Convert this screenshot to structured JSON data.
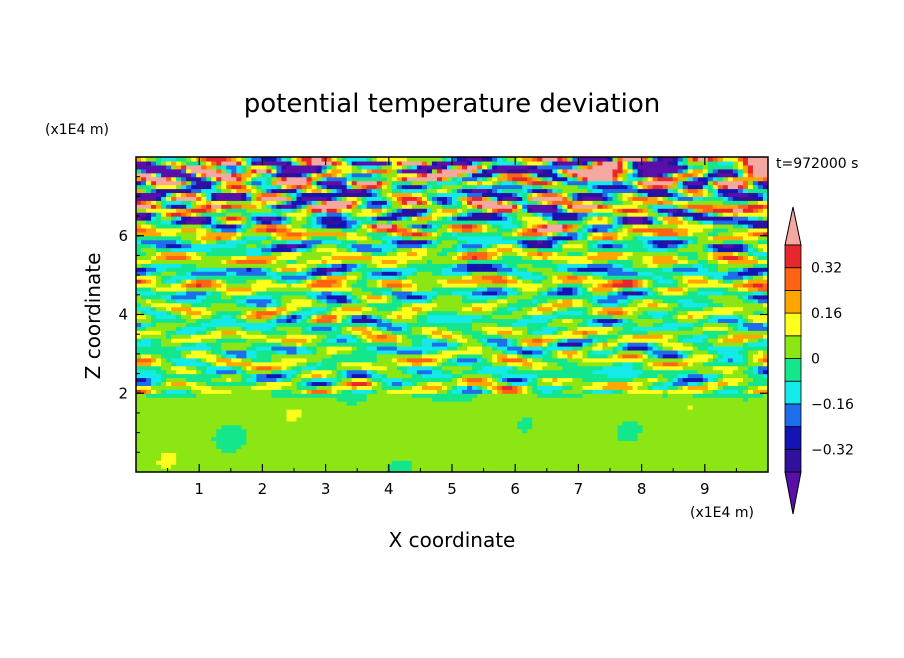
{
  "chart_data": {
    "type": "heatmap",
    "title": "potential temperature deviation",
    "xlabel": "X coordinate",
    "ylabel": "Z coordinate",
    "x_unit": "(x1E4 m)",
    "y_unit": "(x1E4 m)",
    "time_label": "t=972000 s",
    "xlim": [
      0,
      10
    ],
    "ylim": [
      0,
      8
    ],
    "x_ticks": [
      "1",
      "2",
      "3",
      "4",
      "5",
      "6",
      "7",
      "8",
      "9"
    ],
    "y_ticks": [
      "2",
      "4",
      "6"
    ],
    "colorbar": {
      "levels": [
        -0.4,
        -0.32,
        -0.24,
        -0.16,
        -0.08,
        0,
        0.08,
        0.16,
        0.24,
        0.32,
        0.4
      ],
      "tick_labels": [
        "0.32",
        "0.16",
        "0",
        "−0.16",
        "−0.32"
      ],
      "tick_values": [
        0.32,
        0.16,
        0,
        -0.16,
        -0.32
      ],
      "colors": [
        "#5a0fa8",
        "#30109c",
        "#1414b4",
        "#1e6eeb",
        "#14eaea",
        "#14e68c",
        "#8ce614",
        "#ffff1e",
        "#ffa500",
        "#ff6414",
        "#e6282d",
        "#f5a8a0"
      ],
      "extend": "both"
    },
    "description_bands": [
      {
        "z_range": [
          0,
          2.05
        ],
        "pattern": "smooth green 0 to 0.08 blobs (arches)"
      },
      {
        "z_range": [
          2.05,
          5.5
        ],
        "pattern": "horizontal layered bands, amplitude +-0.2"
      },
      {
        "z_range": [
          5.5,
          8
        ],
        "pattern": "strong horizontal waves, +-0.4 extremes"
      }
    ]
  }
}
